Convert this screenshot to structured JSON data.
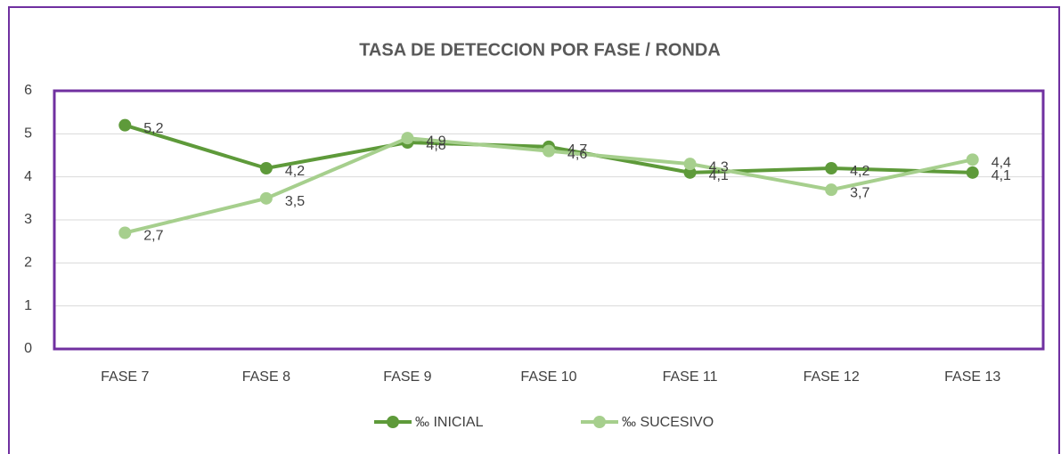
{
  "chart_data": {
    "type": "line",
    "title": "TASA DE DETECCION POR FASE / RONDA",
    "categories": [
      "FASE 7",
      "FASE 8",
      "FASE 9",
      "FASE 10",
      "FASE 11",
      "FASE 12",
      "FASE 13"
    ],
    "series": [
      {
        "name": "‰ INICIAL",
        "color": "#5e9a3a",
        "values": [
          5.2,
          4.2,
          4.8,
          4.7,
          4.1,
          4.2,
          4.1
        ],
        "value_labels": [
          "5,2",
          "4,2",
          "4,8",
          "4,7",
          "4,1",
          "4,2",
          "4,1"
        ]
      },
      {
        "name": "‰ SUCESIVO",
        "color": "#a6cf8d",
        "values": [
          2.7,
          3.5,
          4.9,
          4.6,
          4.3,
          3.7,
          4.4
        ],
        "value_labels": [
          "2,7",
          "3,5",
          "4,9",
          "4,6",
          "4,3",
          "3,7",
          "4,4"
        ]
      }
    ],
    "ylim": [
      0,
      6
    ],
    "yticks": [
      0,
      1,
      2,
      3,
      4,
      5,
      6
    ],
    "grid": true,
    "legend": "bottom"
  }
}
